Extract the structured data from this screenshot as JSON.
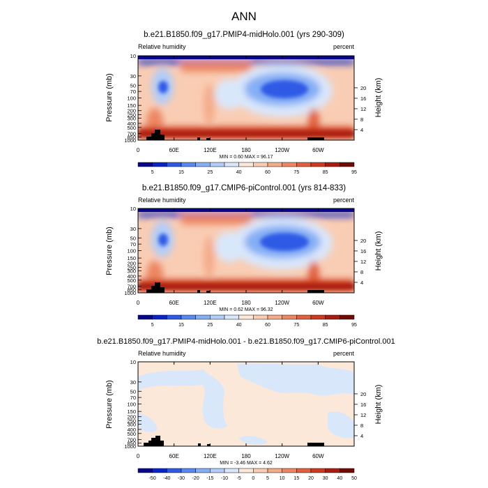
{
  "page_title": "ANN",
  "colors": {
    "abs_palette": [
      "#08078a",
      "#0b24c8",
      "#2f5ae6",
      "#5889f0",
      "#85aef4",
      "#b2cdf8",
      "#d9e7fb",
      "#fbe8d9",
      "#f9cdb3",
      "#f4ab89",
      "#ec8762",
      "#e1603f",
      "#cc3a1f",
      "#a81d10",
      "#6f0a05"
    ],
    "diff_palette": [
      "#08078a",
      "#0b24c8",
      "#2f5ae6",
      "#5889f0",
      "#85aef4",
      "#b2cdf8",
      "#d9e7fb",
      "#fbe8d9",
      "#f9cdb3",
      "#f4ab89",
      "#ec8762",
      "#e1603f",
      "#cc3a1f",
      "#a81d10",
      "#6f0a05"
    ],
    "topography": "#000000"
  },
  "chart_data": [
    {
      "type": "heatmap",
      "title": "b.e21.B1850.f09_g17.PMIP4-midHolo.001 (yrs 290-309)",
      "left_label": "Relative humidity",
      "right_label": "percent",
      "ylabel": "Pressure (mb)",
      "ylabel_right": "Height (km)",
      "x_ticks": [
        "0",
        "60E",
        "120E",
        "180",
        "120W",
        "60W"
      ],
      "y_ticks": [
        "10",
        "30",
        "50",
        "70",
        "100",
        "150",
        "200",
        "250",
        "300",
        "400",
        "500",
        "700",
        "850",
        "1000"
      ],
      "y_ticks_right": [
        "20",
        "16",
        "12",
        "8",
        "4"
      ],
      "stats": "MIN =   0.60  MAX =  96.17",
      "min": 0.6,
      "max": 96.17,
      "colorbar_labels": [
        "5",
        "15",
        "25",
        "40",
        "60",
        "75",
        "85",
        "95"
      ]
    },
    {
      "type": "heatmap",
      "title": "b.e21.B1850.f09_g17.CMIP6-piControl.001 (yrs 814-833)",
      "left_label": "Relative humidity",
      "right_label": "percent",
      "ylabel": "Pressure (mb)",
      "ylabel_right": "Height (km)",
      "x_ticks": [
        "0",
        "60E",
        "120E",
        "180",
        "120W",
        "60W"
      ],
      "y_ticks": [
        "10",
        "30",
        "50",
        "70",
        "100",
        "150",
        "200",
        "250",
        "300",
        "400",
        "500",
        "700",
        "850",
        "1000"
      ],
      "y_ticks_right": [
        "20",
        "16",
        "12",
        "8",
        "4"
      ],
      "stats": "MIN =   0.62  MAX =  96.32",
      "min": 0.62,
      "max": 96.32,
      "colorbar_labels": [
        "5",
        "15",
        "25",
        "40",
        "60",
        "75",
        "85",
        "95"
      ]
    },
    {
      "type": "heatmap",
      "title": "b.e21.B1850.f09_g17.PMIP4-midHolo.001 - b.e21.B1850.f09_g17.CMIP6-piControl.001",
      "left_label": "Relative humidity",
      "right_label": "percent",
      "ylabel": "Pressure (mb)",
      "ylabel_right": "Height (km)",
      "x_ticks": [
        "0",
        "60E",
        "120E",
        "180",
        "120W",
        "60W"
      ],
      "y_ticks": [
        "10",
        "30",
        "50",
        "70",
        "100",
        "150",
        "200",
        "250",
        "300",
        "400",
        "500",
        "700",
        "850",
        "1000"
      ],
      "y_ticks_right": [
        "20",
        "16",
        "12",
        "8",
        "4"
      ],
      "stats": "MIN =  -3.46  MAX =   4.62",
      "min": -3.46,
      "max": 4.62,
      "colorbar_labels": [
        "-50",
        "-40",
        "-30",
        "-20",
        "-15",
        "-10",
        "-5",
        "0",
        "5",
        "10",
        "15",
        "20",
        "30",
        "40",
        "50"
      ]
    }
  ]
}
